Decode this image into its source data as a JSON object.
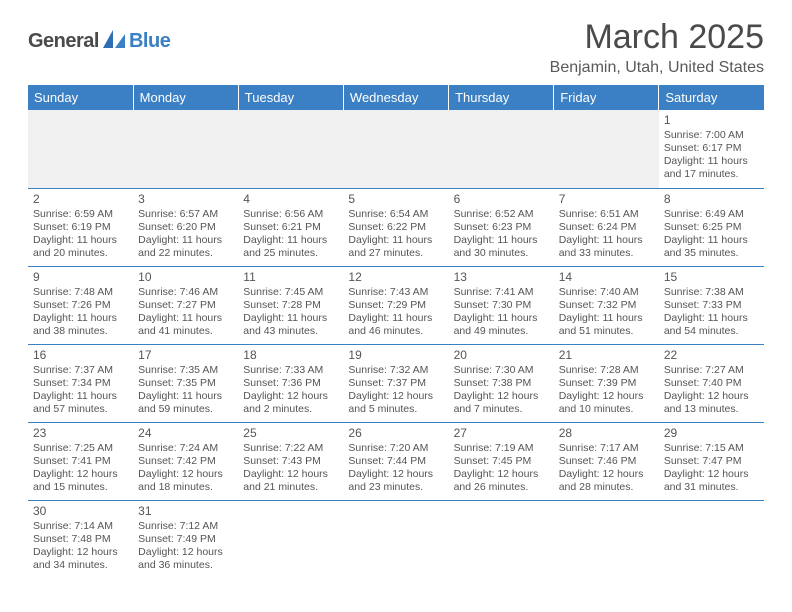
{
  "logo": {
    "text1": "General",
    "text2": "Blue"
  },
  "title": "March 2025",
  "location": "Benjamin, Utah, United States",
  "colors": {
    "header_bg": "#3b7fc4",
    "header_text": "#ffffff",
    "body_text": "#555555",
    "border": "#3b7fc4",
    "page_bg": "#ffffff",
    "blank_bg": "#f0f0f0"
  },
  "weekdays": [
    "Sunday",
    "Monday",
    "Tuesday",
    "Wednesday",
    "Thursday",
    "Friday",
    "Saturday"
  ],
  "weeks": [
    [
      null,
      null,
      null,
      null,
      null,
      null,
      {
        "d": "1",
        "sr": "Sunrise: 7:00 AM",
        "ss": "Sunset: 6:17 PM",
        "dl1": "Daylight: 11 hours",
        "dl2": "and 17 minutes."
      }
    ],
    [
      {
        "d": "2",
        "sr": "Sunrise: 6:59 AM",
        "ss": "Sunset: 6:19 PM",
        "dl1": "Daylight: 11 hours",
        "dl2": "and 20 minutes."
      },
      {
        "d": "3",
        "sr": "Sunrise: 6:57 AM",
        "ss": "Sunset: 6:20 PM",
        "dl1": "Daylight: 11 hours",
        "dl2": "and 22 minutes."
      },
      {
        "d": "4",
        "sr": "Sunrise: 6:56 AM",
        "ss": "Sunset: 6:21 PM",
        "dl1": "Daylight: 11 hours",
        "dl2": "and 25 minutes."
      },
      {
        "d": "5",
        "sr": "Sunrise: 6:54 AM",
        "ss": "Sunset: 6:22 PM",
        "dl1": "Daylight: 11 hours",
        "dl2": "and 27 minutes."
      },
      {
        "d": "6",
        "sr": "Sunrise: 6:52 AM",
        "ss": "Sunset: 6:23 PM",
        "dl1": "Daylight: 11 hours",
        "dl2": "and 30 minutes."
      },
      {
        "d": "7",
        "sr": "Sunrise: 6:51 AM",
        "ss": "Sunset: 6:24 PM",
        "dl1": "Daylight: 11 hours",
        "dl2": "and 33 minutes."
      },
      {
        "d": "8",
        "sr": "Sunrise: 6:49 AM",
        "ss": "Sunset: 6:25 PM",
        "dl1": "Daylight: 11 hours",
        "dl2": "and 35 minutes."
      }
    ],
    [
      {
        "d": "9",
        "sr": "Sunrise: 7:48 AM",
        "ss": "Sunset: 7:26 PM",
        "dl1": "Daylight: 11 hours",
        "dl2": "and 38 minutes."
      },
      {
        "d": "10",
        "sr": "Sunrise: 7:46 AM",
        "ss": "Sunset: 7:27 PM",
        "dl1": "Daylight: 11 hours",
        "dl2": "and 41 minutes."
      },
      {
        "d": "11",
        "sr": "Sunrise: 7:45 AM",
        "ss": "Sunset: 7:28 PM",
        "dl1": "Daylight: 11 hours",
        "dl2": "and 43 minutes."
      },
      {
        "d": "12",
        "sr": "Sunrise: 7:43 AM",
        "ss": "Sunset: 7:29 PM",
        "dl1": "Daylight: 11 hours",
        "dl2": "and 46 minutes."
      },
      {
        "d": "13",
        "sr": "Sunrise: 7:41 AM",
        "ss": "Sunset: 7:30 PM",
        "dl1": "Daylight: 11 hours",
        "dl2": "and 49 minutes."
      },
      {
        "d": "14",
        "sr": "Sunrise: 7:40 AM",
        "ss": "Sunset: 7:32 PM",
        "dl1": "Daylight: 11 hours",
        "dl2": "and 51 minutes."
      },
      {
        "d": "15",
        "sr": "Sunrise: 7:38 AM",
        "ss": "Sunset: 7:33 PM",
        "dl1": "Daylight: 11 hours",
        "dl2": "and 54 minutes."
      }
    ],
    [
      {
        "d": "16",
        "sr": "Sunrise: 7:37 AM",
        "ss": "Sunset: 7:34 PM",
        "dl1": "Daylight: 11 hours",
        "dl2": "and 57 minutes."
      },
      {
        "d": "17",
        "sr": "Sunrise: 7:35 AM",
        "ss": "Sunset: 7:35 PM",
        "dl1": "Daylight: 11 hours",
        "dl2": "and 59 minutes."
      },
      {
        "d": "18",
        "sr": "Sunrise: 7:33 AM",
        "ss": "Sunset: 7:36 PM",
        "dl1": "Daylight: 12 hours",
        "dl2": "and 2 minutes."
      },
      {
        "d": "19",
        "sr": "Sunrise: 7:32 AM",
        "ss": "Sunset: 7:37 PM",
        "dl1": "Daylight: 12 hours",
        "dl2": "and 5 minutes."
      },
      {
        "d": "20",
        "sr": "Sunrise: 7:30 AM",
        "ss": "Sunset: 7:38 PM",
        "dl1": "Daylight: 12 hours",
        "dl2": "and 7 minutes."
      },
      {
        "d": "21",
        "sr": "Sunrise: 7:28 AM",
        "ss": "Sunset: 7:39 PM",
        "dl1": "Daylight: 12 hours",
        "dl2": "and 10 minutes."
      },
      {
        "d": "22",
        "sr": "Sunrise: 7:27 AM",
        "ss": "Sunset: 7:40 PM",
        "dl1": "Daylight: 12 hours",
        "dl2": "and 13 minutes."
      }
    ],
    [
      {
        "d": "23",
        "sr": "Sunrise: 7:25 AM",
        "ss": "Sunset: 7:41 PM",
        "dl1": "Daylight: 12 hours",
        "dl2": "and 15 minutes."
      },
      {
        "d": "24",
        "sr": "Sunrise: 7:24 AM",
        "ss": "Sunset: 7:42 PM",
        "dl1": "Daylight: 12 hours",
        "dl2": "and 18 minutes."
      },
      {
        "d": "25",
        "sr": "Sunrise: 7:22 AM",
        "ss": "Sunset: 7:43 PM",
        "dl1": "Daylight: 12 hours",
        "dl2": "and 21 minutes."
      },
      {
        "d": "26",
        "sr": "Sunrise: 7:20 AM",
        "ss": "Sunset: 7:44 PM",
        "dl1": "Daylight: 12 hours",
        "dl2": "and 23 minutes."
      },
      {
        "d": "27",
        "sr": "Sunrise: 7:19 AM",
        "ss": "Sunset: 7:45 PM",
        "dl1": "Daylight: 12 hours",
        "dl2": "and 26 minutes."
      },
      {
        "d": "28",
        "sr": "Sunrise: 7:17 AM",
        "ss": "Sunset: 7:46 PM",
        "dl1": "Daylight: 12 hours",
        "dl2": "and 28 minutes."
      },
      {
        "d": "29",
        "sr": "Sunrise: 7:15 AM",
        "ss": "Sunset: 7:47 PM",
        "dl1": "Daylight: 12 hours",
        "dl2": "and 31 minutes."
      }
    ],
    [
      {
        "d": "30",
        "sr": "Sunrise: 7:14 AM",
        "ss": "Sunset: 7:48 PM",
        "dl1": "Daylight: 12 hours",
        "dl2": "and 34 minutes."
      },
      {
        "d": "31",
        "sr": "Sunrise: 7:12 AM",
        "ss": "Sunset: 7:49 PM",
        "dl1": "Daylight: 12 hours",
        "dl2": "and 36 minutes."
      },
      null,
      null,
      null,
      null,
      null
    ]
  ]
}
